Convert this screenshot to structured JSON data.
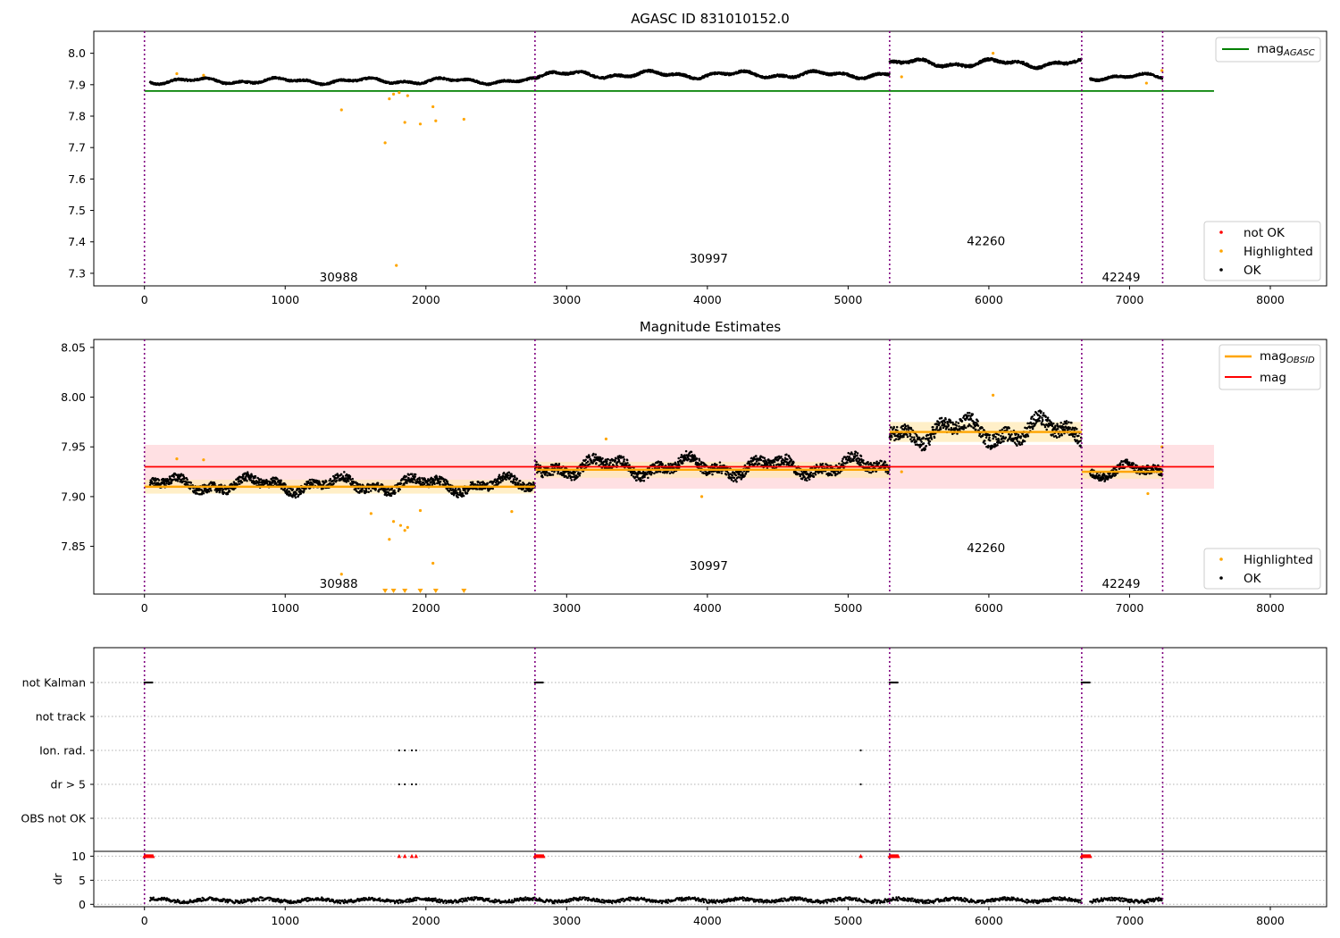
{
  "colors": {
    "ok": "#000000",
    "highlighted": "#ffa500",
    "not_ok": "#ff0000",
    "mag_agasc": "#008000",
    "mag": "#ff0000",
    "mag_obsid": "#ffa500",
    "obs_boundary": "#800080",
    "mag_band": "#ffe0e3",
    "obsid_band": "#ffe8b0"
  },
  "obs_boundaries": [
    0,
    2775,
    5295,
    6660,
    7235
  ],
  "observations": [
    {
      "id": "30988",
      "start": 0,
      "end": 2775,
      "mag": 7.91,
      "std": 0.007
    },
    {
      "id": "30997",
      "start": 2775,
      "end": 5295,
      "mag": 7.927,
      "std": 0.008
    },
    {
      "id": "42260",
      "start": 5295,
      "end": 6660,
      "mag": 7.965,
      "std": 0.01
    },
    {
      "id": "42249",
      "start": 6660,
      "end": 7235,
      "mag": 7.925,
      "std": 0.007
    }
  ],
  "chart_data": [
    {
      "type": "scatter",
      "title": "AGASC ID 831010152.0",
      "xlim": [
        -360,
        8400
      ],
      "ylim": [
        7.26,
        8.07
      ],
      "xticks": [
        0,
        1000,
        2000,
        3000,
        4000,
        5000,
        6000,
        7000,
        8000
      ],
      "yticks": [
        7.3,
        7.4,
        7.5,
        7.6,
        7.7,
        7.8,
        7.9,
        8.0
      ],
      "ytick_labels": [
        "7.3",
        "7.4",
        "7.5",
        "7.6",
        "7.7",
        "7.8",
        "7.9",
        "8.0"
      ],
      "xtick_labels": [
        "0",
        "1000",
        "2000",
        "3000",
        "4000",
        "5000",
        "6000",
        "7000",
        "8000"
      ],
      "mag_agasc": 7.88,
      "mag_agasc_x": [
        0,
        7600
      ],
      "series": [
        {
          "name": "not OK",
          "x": [],
          "y": []
        },
        {
          "name": "Highlighted",
          "x": [
            230,
            420,
            1400,
            1710,
            1740,
            1770,
            1790,
            1810,
            1850,
            1870,
            1960,
            2050,
            2070,
            2270,
            5380,
            6030,
            7120,
            7230
          ],
          "y": [
            7.935,
            7.93,
            7.82,
            7.715,
            7.855,
            7.87,
            7.325,
            7.875,
            7.78,
            7.865,
            7.775,
            7.83,
            7.785,
            7.79,
            7.925,
            8.0,
            7.905,
            7.945
          ]
        },
        {
          "name": "OK",
          "segments": [
            {
              "x0": 40,
              "x1": 2775,
              "base": 7.912,
              "amp": 0.012
            },
            {
              "x0": 2775,
              "x1": 5295,
              "base": 7.932,
              "amp": 0.014
            },
            {
              "x0": 5295,
              "x1": 6660,
              "base": 7.968,
              "amp": 0.016
            },
            {
              "x0": 6720,
              "x1": 7235,
              "base": 7.925,
              "amp": 0.012
            }
          ]
        }
      ],
      "obs_labels": [
        {
          "text": "30988",
          "x": 1380,
          "y": 7.285
        },
        {
          "text": "30997",
          "x": 4010,
          "y": 7.345
        },
        {
          "text": "42260",
          "x": 5980,
          "y": 7.4
        },
        {
          "text": "42249",
          "x": 6940,
          "y": 7.285
        }
      ],
      "legend_top": [
        "mag_AGASC"
      ],
      "legend_bottom": [
        "not OK",
        "Highlighted",
        "OK"
      ],
      "legend_position": "top-right / bottom-right"
    },
    {
      "type": "scatter",
      "title": "Magnitude Estimates",
      "xlim": [
        -360,
        8400
      ],
      "ylim": [
        7.802,
        8.058
      ],
      "xticks": [
        0,
        1000,
        2000,
        3000,
        4000,
        5000,
        6000,
        7000,
        8000
      ],
      "yticks": [
        7.85,
        7.9,
        7.95,
        8.0,
        8.05
      ],
      "ytick_labels": [
        "7.85",
        "7.90",
        "7.95",
        "8.00",
        "8.05"
      ],
      "xtick_labels": [
        "0",
        "1000",
        "2000",
        "3000",
        "4000",
        "5000",
        "6000",
        "7000",
        "8000"
      ],
      "mag": 7.93,
      "mag_band": [
        7.908,
        7.952
      ],
      "mag_x": [
        0,
        7600
      ],
      "series": [
        {
          "name": "Highlighted",
          "x": [
            230,
            420,
            1400,
            1610,
            1740,
            1770,
            1820,
            1850,
            1870,
            1960,
            2050,
            2610,
            3280,
            3960,
            5380,
            6030,
            7130,
            7230
          ],
          "y": [
            7.938,
            7.937,
            7.822,
            7.883,
            7.857,
            7.875,
            7.871,
            7.866,
            7.869,
            7.886,
            7.833,
            7.885,
            7.958,
            7.9,
            7.925,
            8.002,
            7.903,
            7.95
          ],
          "below_x": [
            1710,
            1770,
            1850,
            1960,
            2070,
            2270
          ]
        },
        {
          "name": "OK",
          "segments": [
            {
              "x0": 40,
              "x1": 2775,
              "base": 7.912,
              "amp": 0.01
            },
            {
              "x0": 2775,
              "x1": 5295,
              "base": 7.93,
              "amp": 0.012
            },
            {
              "x0": 5295,
              "x1": 6660,
              "base": 7.966,
              "amp": 0.016
            },
            {
              "x0": 6720,
              "x1": 7235,
              "base": 7.925,
              "amp": 0.01
            }
          ]
        }
      ],
      "obs_labels": [
        {
          "text": "30988",
          "x": 1380,
          "y": 7.812
        },
        {
          "text": "30997",
          "x": 4010,
          "y": 7.83
        },
        {
          "text": "42260",
          "x": 5980,
          "y": 7.848
        },
        {
          "text": "42249",
          "x": 6940,
          "y": 7.812
        }
      ],
      "legend_top": [
        "mag_OBSID",
        "mag"
      ],
      "legend_bottom": [
        "Highlighted",
        "OK"
      ],
      "legend_position": "top-right / bottom-right"
    },
    {
      "type": "scatter",
      "xlim": [
        -360,
        8400
      ],
      "flag_rows": [
        "not Kalman",
        "not track",
        "Ion. rad.",
        "dr > 5",
        "OBS not OK"
      ],
      "flags": {
        "not Kalman": [
          [
            0,
            60
          ],
          [
            2775,
            2835
          ],
          [
            5295,
            5355
          ],
          [
            6660,
            6720
          ]
        ],
        "not track": [],
        "Ion. rad.": [
          1810,
          1850,
          1900,
          1930,
          5090
        ],
        "dr > 5": [
          1810,
          1850,
          1900,
          1930,
          5090
        ],
        "OBS not OK": []
      },
      "dr": {
        "ylim": [
          -0.5,
          11
        ],
        "yticks": [
          0,
          5,
          10
        ],
        "ytick_labels": [
          "0",
          "5",
          "10"
        ],
        "ylabel": "dr",
        "high_red": [
          [
            0,
            60
          ],
          [
            1810,
            1810
          ],
          [
            1850,
            1850
          ],
          [
            1900,
            1900
          ],
          [
            1930,
            1930
          ],
          [
            2775,
            2835
          ],
          [
            5090,
            5090
          ],
          [
            5295,
            5355
          ],
          [
            6660,
            6720
          ]
        ],
        "segments": [
          [
            40,
            2775
          ],
          [
            2775,
            5295
          ],
          [
            5295,
            6660
          ],
          [
            6720,
            7235
          ]
        ]
      },
      "xticks": [
        0,
        1000,
        2000,
        3000,
        4000,
        5000,
        6000,
        7000,
        8000
      ],
      "xtick_labels": [
        "0",
        "1000",
        "2000",
        "3000",
        "4000",
        "5000",
        "6000",
        "7000",
        "8000"
      ]
    }
  ]
}
